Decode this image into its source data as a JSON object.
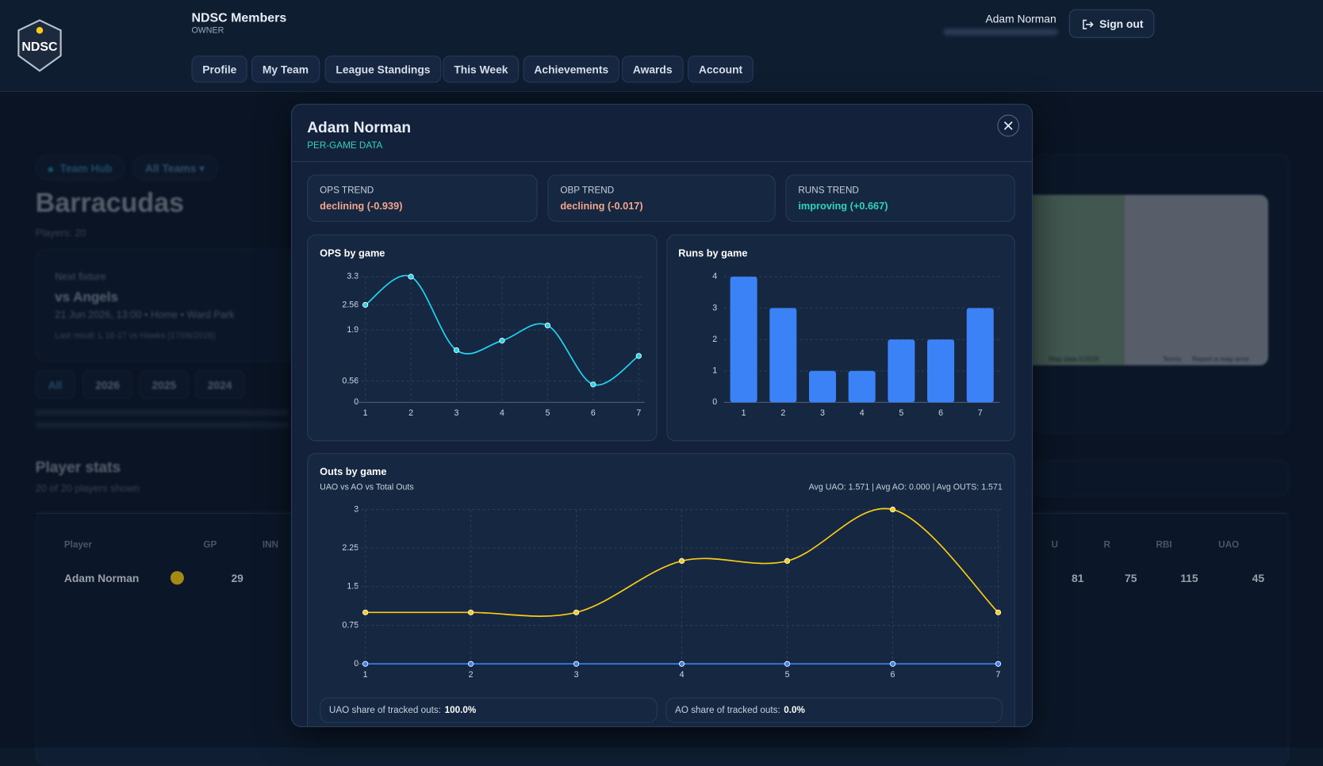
{
  "header": {
    "brand": "NDSC Members",
    "role": "OWNER",
    "user": "Adam Norman",
    "sign_out": "Sign out"
  },
  "nav": [
    "Profile",
    "My Team",
    "League Standings",
    "This Week",
    "Achievements",
    "Awards",
    "Account"
  ],
  "page": {
    "team_hub": "Team Hub",
    "team_filter": "All Teams",
    "team": "Barracudas",
    "players": "Players: 20",
    "fixture": {
      "label": "Next fixture",
      "opponent": "vs Angels",
      "details": "21 Jun 2026, 13:00 • Home • Ward Park",
      "last_result": "Last result: L 16-17 vs Hawks (17/06/2026)"
    },
    "seasons": [
      "All",
      "2026",
      "2025",
      "2024"
    ],
    "stats_title": "Player stats",
    "stats_count": "20 of 20 players shown",
    "table": {
      "headers_left": [
        "Player",
        "GP",
        "INN"
      ],
      "headers_right": [
        "U",
        "R",
        "RBI",
        "UAO"
      ],
      "row": {
        "player": "Adam Norman",
        "gp": 29,
        "right": [
          81,
          75,
          115,
          45
        ]
      }
    },
    "map": [
      "Map data ©2026",
      "Terms",
      "Report a map error"
    ]
  },
  "modal": {
    "title": "Adam Norman",
    "subtitle": "PER-GAME DATA",
    "trends": [
      {
        "label": "OPS TREND",
        "value": "declining (-0.939)"
      },
      {
        "label": "OBP TREND",
        "value": "declining (-0.017)"
      },
      {
        "label": "RUNS TREND",
        "value": "improving (+0.667)"
      }
    ],
    "outs_shares": [
      {
        "label": "UAO share of tracked outs:",
        "value": "100.0%"
      },
      {
        "label": "AO share of tracked outs:",
        "value": "0.0%"
      }
    ]
  },
  "chart_data": [
    {
      "type": "line",
      "title": "OPS by game",
      "x": [
        1,
        2,
        3,
        4,
        5,
        6,
        7
      ],
      "series": [
        {
          "color": "#22d3ee",
          "values": [
            2.56,
            3.3,
            1.37,
            1.62,
            2.02,
            0.47,
            1.22
          ]
        }
      ],
      "xlim": [
        1,
        7
      ],
      "xticks": [
        1,
        2,
        3,
        4,
        5,
        6,
        7
      ],
      "ylim": [
        0,
        3.3
      ],
      "yticks": [
        0,
        0.56,
        1.9,
        2.56,
        3.3
      ],
      "grid": true
    },
    {
      "type": "bar",
      "title": "Runs by game",
      "categories": [
        "1",
        "2",
        "3",
        "4",
        "5",
        "6",
        "7"
      ],
      "values": [
        4,
        3,
        1,
        1,
        2,
        2,
        3
      ],
      "color": "#3b82f6",
      "ylim": [
        0,
        4
      ],
      "yticks": [
        0,
        1,
        2,
        3,
        4
      ],
      "grid": true
    },
    {
      "type": "line",
      "title": "Outs by game",
      "subtitle": "UAO vs AO vs Total Outs",
      "annotation": "Avg UAO: 1.571 | Avg AO: 0.000 | Avg OUTS: 1.571",
      "x": [
        1,
        2,
        3,
        4,
        5,
        6,
        7
      ],
      "series": [
        {
          "color": "#facc15",
          "values": [
            1,
            1,
            1,
            2,
            2,
            3,
            1
          ]
        },
        {
          "color": "#3b82f6",
          "values": [
            0,
            0,
            0,
            0,
            0,
            0,
            0
          ]
        }
      ],
      "xlim": [
        1,
        7
      ],
      "xticks": [
        1,
        2,
        3,
        4,
        5,
        6,
        7
      ],
      "ylim": [
        0,
        3
      ],
      "yticks": [
        0,
        0.75,
        1.5,
        2.25,
        3
      ],
      "grid": true
    }
  ]
}
